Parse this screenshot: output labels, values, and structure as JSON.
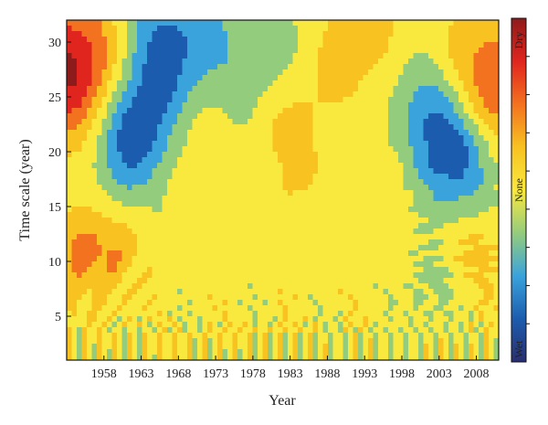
{
  "chart_data": {
    "type": "heatmap",
    "subtype": "filled-contour",
    "title": "",
    "xlabel": "Year",
    "ylabel": "Time scale (year)",
    "x_ticks": [
      1958,
      1963,
      1968,
      1973,
      1978,
      1983,
      1988,
      1993,
      1998,
      2003,
      2008
    ],
    "y_ticks": [
      5,
      10,
      15,
      20,
      25,
      30
    ],
    "xlim": [
      1953,
      2011
    ],
    "ylim": [
      1,
      32
    ],
    "grid": false,
    "colorbar": {
      "position": "right",
      "labels": [
        "Dry",
        "None",
        "Wet"
      ],
      "colors": [
        "#8e1b1b",
        "#e0251e",
        "#f3721f",
        "#f8c221",
        "#f9e83d",
        "#94cc7d",
        "#3aa3dc",
        "#1c5cae",
        "#2a2f70"
      ],
      "range": [
        -2,
        2
      ]
    },
    "features": [
      {
        "kind": "peak",
        "year": 1955,
        "scale": 27,
        "strength": 2.3
      },
      {
        "kind": "trough",
        "year": 1962,
        "scale": 22,
        "strength": -2.0
      },
      {
        "kind": "trough",
        "year": 1966,
        "scale": 29,
        "strength": -1.6
      },
      {
        "kind": "peak",
        "year": 1970,
        "scale": 22,
        "strength": 1.1
      },
      {
        "kind": "peak",
        "year": 1983,
        "scale": 21.5,
        "strength": 1.2
      },
      {
        "kind": "peak",
        "year": 1991,
        "scale": 28,
        "strength": 1.0
      },
      {
        "kind": "peak",
        "year": 1997,
        "scale": 20,
        "strength": 1.0
      },
      {
        "kind": "trough",
        "year": 2001,
        "scale": 24,
        "strength": -1.5
      },
      {
        "kind": "trough",
        "year": 2005,
        "scale": 20,
        "strength": -1.8
      },
      {
        "kind": "peak",
        "year": 2009,
        "scale": 25,
        "strength": 1.8
      },
      {
        "kind": "trough",
        "year": 1977,
        "scale": 21,
        "strength": -0.8
      },
      {
        "kind": "trough",
        "year": 1983,
        "scale": 28,
        "strength": -0.8
      },
      {
        "kind": "trough",
        "year": 1990,
        "scale": 21,
        "strength": -0.8
      },
      {
        "kind": "peak",
        "year": 1957,
        "scale": 11,
        "strength": 1.0
      },
      {
        "kind": "peak",
        "year": 2006,
        "scale": 10,
        "strength": 1.0
      },
      {
        "kind": "trough",
        "year": 2004,
        "scale": 9,
        "strength": -1.0
      }
    ]
  }
}
